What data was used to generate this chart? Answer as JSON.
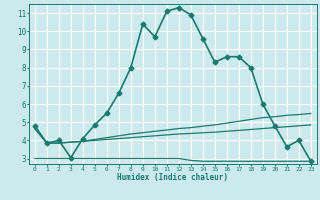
{
  "title": "",
  "xlabel": "Humidex (Indice chaleur)",
  "ylabel": "",
  "background_color": "#cce9ed",
  "grid_color": "#ffffff",
  "line_color": "#1a7a6e",
  "xlim": [
    -0.5,
    23.5
  ],
  "ylim": [
    2.7,
    11.5
  ],
  "xticks": [
    0,
    1,
    2,
    3,
    4,
    5,
    6,
    7,
    8,
    9,
    10,
    11,
    12,
    13,
    14,
    15,
    16,
    17,
    18,
    19,
    20,
    21,
    22,
    23
  ],
  "yticks": [
    3,
    4,
    5,
    6,
    7,
    8,
    9,
    10,
    11
  ],
  "series": [
    {
      "x": [
        0,
        1,
        2,
        3,
        4,
        5,
        6,
        7,
        8,
        9,
        10,
        11,
        12,
        13,
        14,
        15,
        16,
        17,
        18,
        19,
        20,
        21,
        22,
        23
      ],
      "y": [
        4.8,
        3.85,
        4.0,
        3.05,
        4.1,
        4.85,
        5.5,
        6.6,
        8.0,
        10.4,
        9.7,
        11.1,
        11.3,
        10.9,
        9.6,
        8.3,
        8.6,
        8.6,
        8.0,
        6.0,
        4.8,
        3.65,
        4.0,
        2.85
      ],
      "marker": "D",
      "markersize": 2.5,
      "linewidth": 1.2
    },
    {
      "x": [
        0,
        1,
        2,
        3,
        4,
        5,
        6,
        7,
        8,
        9,
        10,
        11,
        12,
        13,
        14,
        15,
        16,
        17,
        18,
        19,
        20,
        21,
        22,
        23
      ],
      "y": [
        4.65,
        3.85,
        3.85,
        3.9,
        3.95,
        4.05,
        4.15,
        4.25,
        4.35,
        4.42,
        4.5,
        4.57,
        4.65,
        4.7,
        4.78,
        4.85,
        4.95,
        5.05,
        5.15,
        5.25,
        5.3,
        5.38,
        5.42,
        5.48
      ],
      "marker": null,
      "markersize": 0,
      "linewidth": 0.9
    },
    {
      "x": [
        0,
        1,
        2,
        3,
        4,
        5,
        6,
        7,
        8,
        9,
        10,
        11,
        12,
        13,
        14,
        15,
        16,
        17,
        18,
        19,
        20,
        21,
        22,
        23
      ],
      "y": [
        4.65,
        3.85,
        3.85,
        3.9,
        3.95,
        4.0,
        4.05,
        4.1,
        4.15,
        4.2,
        4.25,
        4.3,
        4.35,
        4.38,
        4.42,
        4.45,
        4.5,
        4.55,
        4.6,
        4.65,
        4.7,
        4.75,
        4.8,
        4.85
      ],
      "marker": null,
      "markersize": 0,
      "linewidth": 0.9
    },
    {
      "x": [
        0,
        1,
        2,
        3,
        4,
        5,
        6,
        7,
        8,
        9,
        10,
        11,
        12,
        13,
        14,
        15,
        16,
        17,
        18,
        19,
        20,
        21,
        22,
        23
      ],
      "y": [
        3.0,
        3.0,
        3.0,
        3.0,
        3.0,
        3.0,
        3.0,
        3.0,
        3.0,
        3.0,
        3.0,
        3.0,
        3.0,
        2.9,
        2.85,
        2.85,
        2.85,
        2.85,
        2.85,
        2.85,
        2.85,
        2.85,
        2.85,
        2.85
      ],
      "marker": null,
      "markersize": 0,
      "linewidth": 0.9
    }
  ]
}
